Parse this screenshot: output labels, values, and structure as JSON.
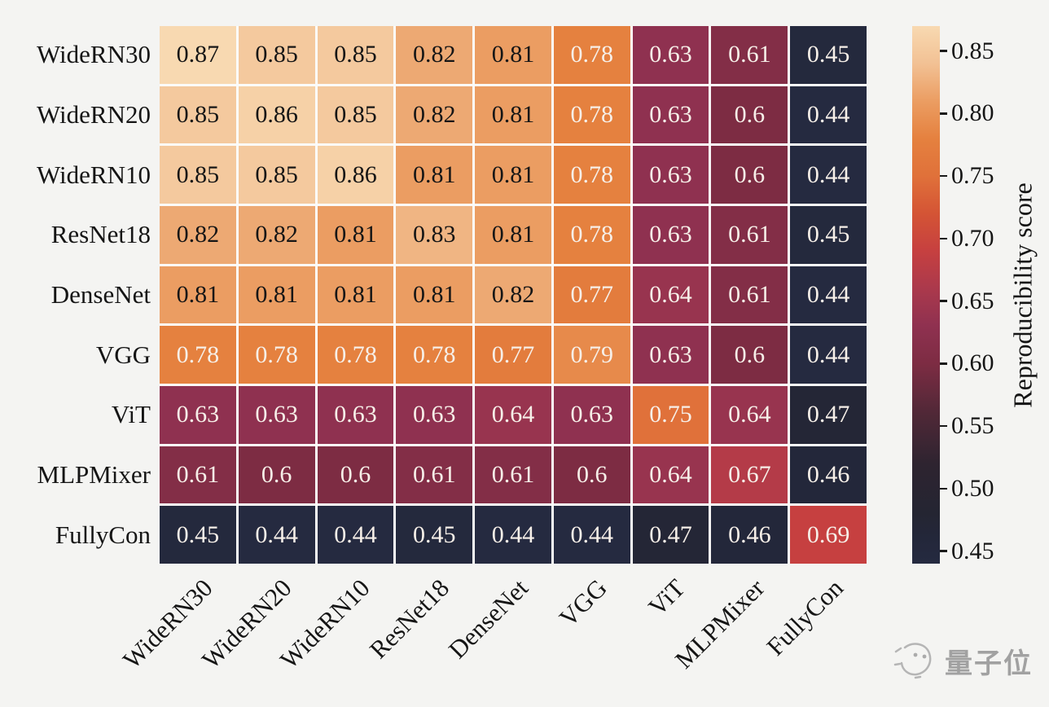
{
  "figure": {
    "background": "#f4f4f2",
    "watermark": {
      "text": "量子位",
      "color": "#8d8d8d",
      "logo": "sketch-face-logo"
    }
  },
  "chart_data": {
    "type": "heatmap",
    "title": "",
    "colorbar_label": "Reproducibility score",
    "row_labels": [
      "WideRN30",
      "WideRN20",
      "WideRN10",
      "ResNet18",
      "DenseNet",
      "VGG",
      "ViT",
      "MLPMixer",
      "FullyCon"
    ],
    "col_labels": [
      "WideRN30",
      "WideRN20",
      "WideRN10",
      "ResNet18",
      "DenseNet",
      "VGG",
      "ViT",
      "MLPMixer",
      "FullyCon"
    ],
    "values": [
      [
        "0.87",
        "0.85",
        "0.85",
        "0.82",
        "0.81",
        "0.78",
        "0.63",
        "0.61",
        "0.45"
      ],
      [
        "0.85",
        "0.86",
        "0.85",
        "0.82",
        "0.81",
        "0.78",
        "0.63",
        "0.6",
        "0.44"
      ],
      [
        "0.85",
        "0.85",
        "0.86",
        "0.81",
        "0.81",
        "0.78",
        "0.63",
        "0.6",
        "0.44"
      ],
      [
        "0.82",
        "0.82",
        "0.81",
        "0.83",
        "0.81",
        "0.78",
        "0.63",
        "0.61",
        "0.45"
      ],
      [
        "0.81",
        "0.81",
        "0.81",
        "0.81",
        "0.82",
        "0.77",
        "0.64",
        "0.61",
        "0.44"
      ],
      [
        "0.78",
        "0.78",
        "0.78",
        "0.78",
        "0.77",
        "0.79",
        "0.63",
        "0.6",
        "0.44"
      ],
      [
        "0.63",
        "0.63",
        "0.63",
        "0.63",
        "0.64",
        "0.63",
        "0.75",
        "0.64",
        "0.47"
      ],
      [
        "0.61",
        "0.6",
        "0.6",
        "0.61",
        "0.61",
        "0.6",
        "0.64",
        "0.67",
        "0.46"
      ],
      [
        "0.45",
        "0.44",
        "0.44",
        "0.45",
        "0.44",
        "0.44",
        "0.47",
        "0.46",
        "0.69"
      ]
    ],
    "vmin": 0.44,
    "vmax": 0.87,
    "colorbar_ticks": [
      "0.85",
      "0.80",
      "0.75",
      "0.70",
      "0.65",
      "0.60",
      "0.55",
      "0.50",
      "0.45"
    ],
    "colormap_stops": [
      [
        "0.44",
        "#252a40"
      ],
      [
        "0.46",
        "#23273a"
      ],
      [
        "0.48",
        "#242532"
      ],
      [
        "0.52",
        "#2e2430"
      ],
      [
        "0.56",
        "#502837"
      ],
      [
        "0.60",
        "#7d2c43"
      ],
      [
        "0.63",
        "#8f3150"
      ],
      [
        "0.66",
        "#ab394c"
      ],
      [
        "0.69",
        "#c64040"
      ],
      [
        "0.72",
        "#d45435"
      ],
      [
        "0.75",
        "#e0713a"
      ],
      [
        "0.78",
        "#e5813f"
      ],
      [
        "0.81",
        "#eb9d62"
      ],
      [
        "0.84",
        "#f2c194"
      ],
      [
        "0.87",
        "#f8d9b1"
      ]
    ],
    "dark_text_threshold": 0.8,
    "text_color_dark": "#161616",
    "text_color_light": "#f6efe8",
    "grid_line_color": "#fbfbfa",
    "legend_position": "right",
    "x_tick_rotation_deg": 45
  }
}
